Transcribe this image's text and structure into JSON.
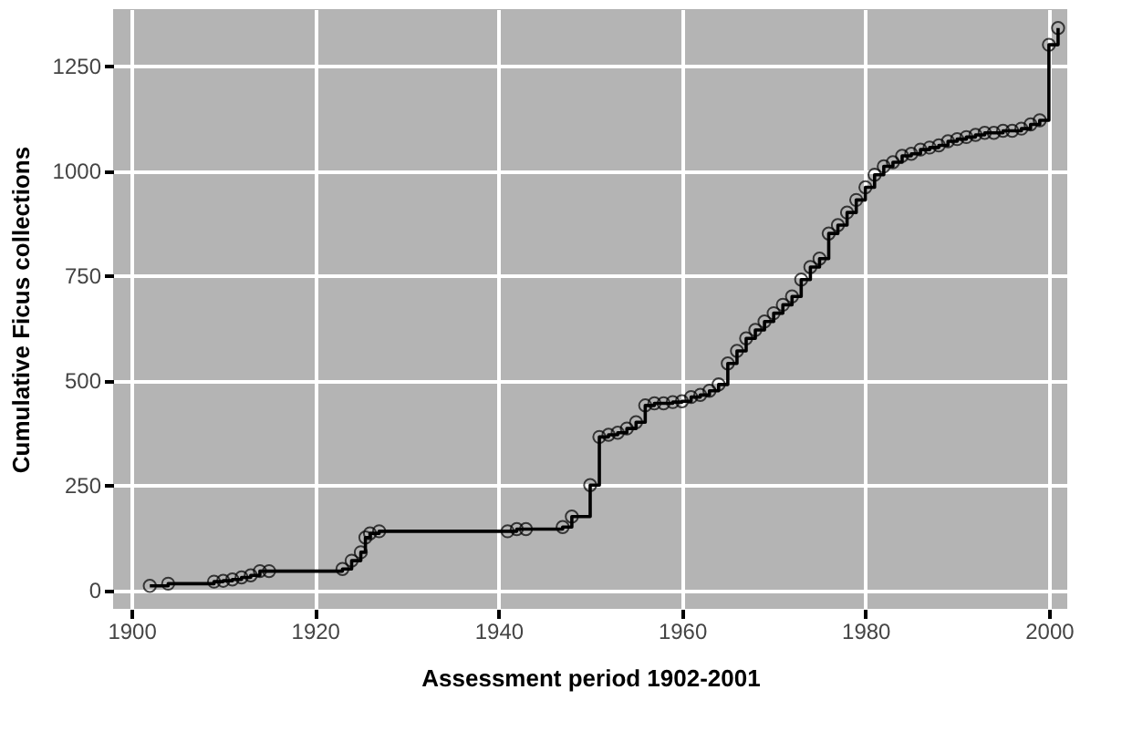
{
  "chart_data": {
    "type": "step",
    "xlabel": "Assessment period 1902-2001",
    "ylabel": "Cumulative Ficus collections",
    "x": [
      1902,
      1904,
      1909,
      1910,
      1911,
      1912,
      1913,
      1914,
      1915,
      1923,
      1924,
      1925,
      1925.5,
      1926,
      1927,
      1941,
      1942,
      1943,
      1947,
      1948,
      1950,
      1951,
      1952,
      1953,
      1954,
      1955,
      1956,
      1957,
      1958,
      1959,
      1960,
      1961,
      1962,
      1963,
      1964,
      1965,
      1966,
      1967,
      1968,
      1969,
      1970,
      1971,
      1972,
      1973,
      1974,
      1975,
      1976,
      1977,
      1978,
      1979,
      1980,
      1981,
      1982,
      1983,
      1984,
      1985,
      1986,
      1987,
      1988,
      1989,
      1990,
      1991,
      1992,
      1993,
      1994,
      1995,
      1996,
      1997,
      1998,
      1999,
      2000,
      2001
    ],
    "series": [
      {
        "color": "#000000",
        "values": [
          10,
          15,
          20,
          22,
          25,
          30,
          35,
          45,
          45,
          50,
          70,
          90,
          125,
          135,
          140,
          140,
          145,
          145,
          150,
          175,
          250,
          365,
          370,
          375,
          385,
          400,
          440,
          445,
          445,
          448,
          450,
          460,
          465,
          475,
          490,
          540,
          570,
          600,
          620,
          640,
          660,
          680,
          700,
          740,
          770,
          790,
          850,
          870,
          900,
          930,
          960,
          990,
          1010,
          1020,
          1035,
          1040,
          1050,
          1055,
          1060,
          1070,
          1075,
          1080,
          1085,
          1090,
          1090,
          1095,
          1095,
          1100,
          1110,
          1120,
          1300,
          1340
        ]
      }
    ],
    "xlim": [
      1898,
      2002
    ],
    "ylim": [
      -45,
      1385
    ],
    "xticks": [
      1900,
      1920,
      1940,
      1960,
      1980,
      2000
    ],
    "yticks": [
      0,
      250,
      500,
      750,
      1000,
      1250
    ],
    "grid": true,
    "marker": "circle",
    "line_style": "solid"
  }
}
